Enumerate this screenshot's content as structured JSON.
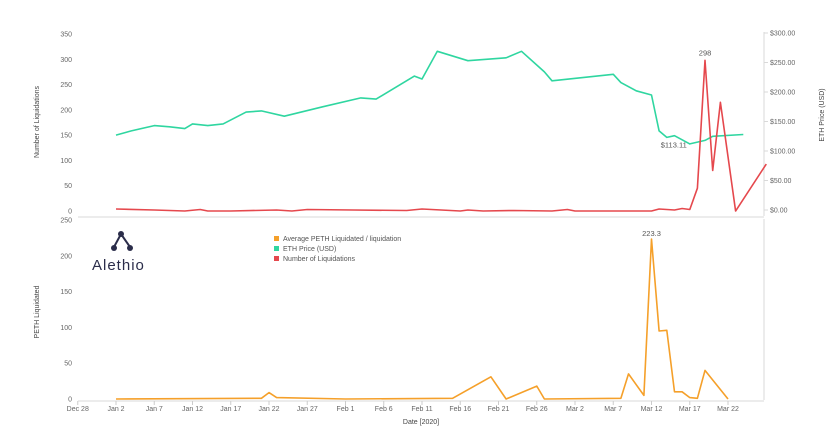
{
  "logo": {
    "name": "Alethio"
  },
  "chart_data": [
    {
      "type": "line",
      "title": "",
      "xlabel": "",
      "ylabel": "Number of Liquidations",
      "y2label": "ETH Price (USD)",
      "ylim": [
        0,
        350
      ],
      "y2lim": [
        0,
        300
      ],
      "yticks": [
        "350",
        "300",
        "250",
        "200",
        "150",
        "100",
        "50",
        "0"
      ],
      "y2ticks": [
        "$300.00",
        "$250.00",
        "$200.00",
        "$150.00",
        "$100.00",
        "$50.00",
        "$0.00"
      ],
      "grid": false,
      "series": [
        {
          "name": "ETH Price (USD)",
          "axis": "right",
          "color": "#2fd6a0",
          "points": [
            [
              "2020-01-02",
              127
            ],
            [
              "2020-01-04",
              134
            ],
            [
              "2020-01-07",
              143
            ],
            [
              "2020-01-09",
              141
            ],
            [
              "2020-01-11",
              138
            ],
            [
              "2020-01-12",
              146
            ],
            [
              "2020-01-14",
              143
            ],
            [
              "2020-01-16",
              146
            ],
            [
              "2020-01-19",
              166
            ],
            [
              "2020-01-21",
              168
            ],
            [
              "2020-01-24",
              159
            ],
            [
              "2020-01-29",
              175
            ],
            [
              "2020-02-03",
              190
            ],
            [
              "2020-02-05",
              188
            ],
            [
              "2020-02-10",
              227
            ],
            [
              "2020-02-11",
              222
            ],
            [
              "2020-02-13",
              269
            ],
            [
              "2020-02-17",
              253
            ],
            [
              "2020-02-22",
              258
            ],
            [
              "2020-02-24",
              269
            ],
            [
              "2020-02-27",
              234
            ],
            [
              "2020-02-28",
              219
            ],
            [
              "2020-03-07",
              230
            ],
            [
              "2020-03-08",
              216
            ],
            [
              "2020-03-10",
              202
            ],
            [
              "2020-03-12",
              195
            ],
            [
              "2020-03-13",
              134
            ],
            [
              "2020-03-14",
              123
            ],
            [
              "2020-03-15",
              126
            ],
            [
              "2020-03-17",
              112
            ],
            [
              "2020-03-19",
              118
            ],
            [
              "2020-03-20",
              125
            ],
            [
              "2020-03-24",
              128
            ]
          ]
        },
        {
          "name": "Number of Liquidations",
          "axis": "left",
          "color": "#e5484d",
          "points": [
            [
              "2020-01-02",
              4
            ],
            [
              "2020-01-07",
              2
            ],
            [
              "2020-01-11",
              0
            ],
            [
              "2020-01-13",
              3
            ],
            [
              "2020-01-14",
              0
            ],
            [
              "2020-01-17",
              0
            ],
            [
              "2020-01-23",
              2
            ],
            [
              "2020-01-25",
              0
            ],
            [
              "2020-01-27",
              3
            ],
            [
              "2020-02-02",
              2
            ],
            [
              "2020-02-09",
              1
            ],
            [
              "2020-02-11",
              4
            ],
            [
              "2020-02-16",
              0
            ],
            [
              "2020-02-17",
              2
            ],
            [
              "2020-02-19",
              0
            ],
            [
              "2020-02-23",
              1
            ],
            [
              "2020-02-28",
              0
            ],
            [
              "2020-03-01",
              3
            ],
            [
              "2020-03-02",
              0
            ],
            [
              "2020-03-12",
              0
            ],
            [
              "2020-03-13",
              4
            ],
            [
              "2020-03-15",
              2
            ],
            [
              "2020-03-16",
              5
            ],
            [
              "2020-03-17",
              3
            ],
            [
              "2020-03-18",
              45
            ],
            [
              "2020-03-19",
              298
            ],
            [
              "2020-03-20",
              80
            ],
            [
              "2020-03-21",
              215
            ],
            [
              "2020-03-23",
              0
            ],
            [
              "2020-03-27",
              93
            ]
          ]
        }
      ],
      "annotations": [
        {
          "label": "298",
          "series": "Number of Liquidations",
          "x": "2020-03-19",
          "y": 298
        },
        {
          "label": "$113.11",
          "series": "ETH Price (USD)",
          "x": "2020-03-17",
          "y": 113.11
        }
      ]
    },
    {
      "type": "line",
      "title": "",
      "xlabel": "Date [2020]",
      "ylabel": "PETH Liquidated",
      "ylim": [
        0,
        250
      ],
      "yticks": [
        "250",
        "200",
        "150",
        "100",
        "50",
        "0"
      ],
      "xticks": [
        "Dec 28",
        "Jan 2",
        "Jan 7",
        "Jan 12",
        "Jan 17",
        "Jan 22",
        "Jan 27",
        "Feb 1",
        "Feb 6",
        "Feb 11",
        "Feb 16",
        "Feb 21",
        "Feb 26",
        "Mar 2",
        "Mar 7",
        "Mar 12",
        "Mar 17",
        "Mar 22"
      ],
      "xtick_dates": [
        "2019-12-28",
        "2020-01-02",
        "2020-01-07",
        "2020-01-12",
        "2020-01-17",
        "2020-01-22",
        "2020-01-27",
        "2020-02-01",
        "2020-02-06",
        "2020-02-11",
        "2020-02-16",
        "2020-02-21",
        "2020-02-26",
        "2020-03-02",
        "2020-03-07",
        "2020-03-12",
        "2020-03-17",
        "2020-03-22"
      ],
      "grid": false,
      "series": [
        {
          "name": "Average PETH Liquidated / liquidation",
          "color": "#f5a02a",
          "points": [
            [
              "2020-01-02",
              0
            ],
            [
              "2020-01-21",
              1
            ],
            [
              "2020-01-22",
              9
            ],
            [
              "2020-01-23",
              2
            ],
            [
              "2020-02-01",
              0
            ],
            [
              "2020-02-15",
              1
            ],
            [
              "2020-02-20",
              31
            ],
            [
              "2020-02-22",
              0
            ],
            [
              "2020-02-26",
              18
            ],
            [
              "2020-02-27",
              0
            ],
            [
              "2020-03-08",
              1
            ],
            [
              "2020-03-09",
              35
            ],
            [
              "2020-03-11",
              5
            ],
            [
              "2020-03-12",
              223.3
            ],
            [
              "2020-03-13",
              95
            ],
            [
              "2020-03-14",
              96
            ],
            [
              "2020-03-15",
              10
            ],
            [
              "2020-03-16",
              10
            ],
            [
              "2020-03-17",
              2
            ],
            [
              "2020-03-18",
              1
            ],
            [
              "2020-03-19",
              40
            ],
            [
              "2020-03-22",
              0
            ]
          ]
        }
      ],
      "annotations": [
        {
          "label": "223.3",
          "series": "Average PETH Liquidated / liquidation",
          "x": "2020-03-12",
          "y": 223.3
        }
      ]
    }
  ]
}
